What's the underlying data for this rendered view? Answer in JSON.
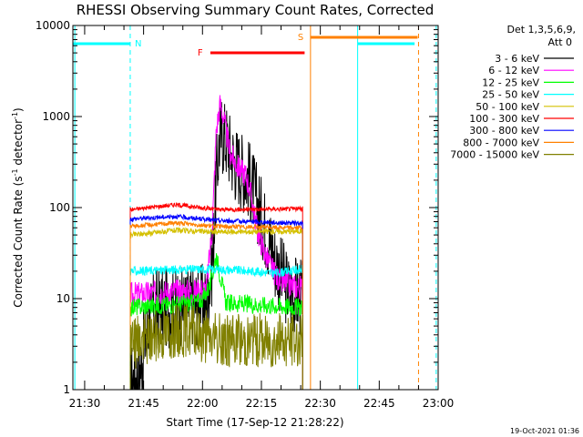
{
  "chart_data": {
    "type": "line",
    "title": "RHESSI Observing Summary Count Rates, Corrected",
    "xlabel": "Start Time (17-Sep-12 21:28:22)",
    "ylabel_main": "Corrected Count Rate (s",
    "ylabel_sup1": "-1",
    "ylabel_mid": " detector",
    "ylabel_sup2": "-1",
    "ylabel_end": ")",
    "y_scale": "log",
    "ylim": [
      1,
      10000
    ],
    "xlim_minutes": [
      -1,
      92
    ],
    "xtick_minutes": [
      2,
      17,
      32,
      47,
      62,
      77,
      92
    ],
    "xtick_labels": [
      "21:30",
      "21:45",
      "22:00",
      "22:15",
      "22:30",
      "22:45",
      "23:00"
    ],
    "ytick_values": [
      1,
      10,
      100,
      1000,
      10000
    ],
    "ytick_labels": [
      "1",
      "10",
      "100",
      "1000",
      "10000"
    ],
    "legend_header": [
      "Det 1,3,5,6,9,",
      "Att 0"
    ],
    "legend_placement": "top-right",
    "timestamp": "19-Oct-2021 01:36",
    "data_start_minute": 13.6,
    "data_end_minute": 57.5,
    "series": [
      {
        "name": "3 - 6 keV",
        "color": "#000000",
        "base": 5.5,
        "noise": 0.45,
        "points": [
          [
            13.6,
            1.2
          ],
          [
            16,
            1.5
          ],
          [
            18,
            5
          ],
          [
            20,
            8
          ],
          [
            25,
            8
          ],
          [
            30,
            8.5
          ],
          [
            33,
            9
          ],
          [
            34.5,
            25
          ],
          [
            35.5,
            200
          ],
          [
            36.5,
            660
          ],
          [
            38,
            560
          ],
          [
            40,
            330
          ],
          [
            42,
            260
          ],
          [
            44,
            200
          ],
          [
            46,
            110
          ],
          [
            48,
            60
          ],
          [
            50,
            30
          ],
          [
            52,
            18
          ],
          [
            54,
            12
          ],
          [
            57.5,
            10
          ]
        ]
      },
      {
        "name": "6 - 12 keV",
        "color": "#ff00ff",
        "base": 11,
        "noise": 0.14,
        "points": [
          [
            13.6,
            11
          ],
          [
            25,
            12
          ],
          [
            30,
            12
          ],
          [
            33,
            13
          ],
          [
            34.5,
            60
          ],
          [
            35.5,
            700
          ],
          [
            36.5,
            1400
          ],
          [
            37.5,
            900
          ],
          [
            39,
            400
          ],
          [
            41,
            280
          ],
          [
            43,
            230
          ],
          [
            44.5,
            130
          ],
          [
            46,
            55
          ],
          [
            48,
            30
          ],
          [
            50,
            20
          ],
          [
            52,
            15
          ],
          [
            57.5,
            13
          ]
        ]
      },
      {
        "name": "12 - 25 keV",
        "color": "#00ff00",
        "base": 8,
        "noise": 0.1,
        "points": [
          [
            13.6,
            8
          ],
          [
            30,
            9
          ],
          [
            32,
            10
          ],
          [
            34,
            14
          ],
          [
            35.5,
            30
          ],
          [
            36.5,
            18
          ],
          [
            38,
            9
          ],
          [
            57.5,
            8
          ]
        ]
      },
      {
        "name": "25 - 50 keV",
        "color": "#00ffff",
        "base": 20,
        "noise": 0.05,
        "points": [
          [
            13.6,
            20
          ],
          [
            30,
            21
          ],
          [
            36,
            21
          ],
          [
            45,
            20
          ],
          [
            50,
            19
          ],
          [
            57.5,
            21
          ]
        ]
      },
      {
        "name": "50 - 100 keV",
        "color": "#d4c000",
        "base": 52,
        "noise": 0.03,
        "points": [
          [
            13.6,
            50
          ],
          [
            25,
            56
          ],
          [
            36,
            54
          ],
          [
            57.5,
            55
          ]
        ]
      },
      {
        "name": "100 - 300 keV",
        "color": "#ff0000",
        "base": 95,
        "noise": 0.025,
        "points": [
          [
            13.6,
            95
          ],
          [
            25,
            108
          ],
          [
            36,
            95
          ],
          [
            57.5,
            97
          ]
        ]
      },
      {
        "name": "300 - 800 keV",
        "color": "#0000ff",
        "base": 75,
        "noise": 0.025,
        "points": [
          [
            13.6,
            75
          ],
          [
            25,
            80
          ],
          [
            36,
            72
          ],
          [
            57.5,
            67
          ]
        ]
      },
      {
        "name": "800 - 7000 keV",
        "color": "#ff8000",
        "base": 62,
        "noise": 0.025,
        "points": [
          [
            13.6,
            62
          ],
          [
            25,
            68
          ],
          [
            36,
            62
          ],
          [
            57.5,
            60
          ]
        ]
      },
      {
        "name": "7000 - 15000 keV",
        "color": "#808000",
        "base": 3.5,
        "noise": 0.3,
        "points": [
          [
            13.6,
            2.8
          ],
          [
            16,
            3.5
          ],
          [
            25,
            4.5
          ],
          [
            28,
            4.5
          ],
          [
            35,
            3.5
          ],
          [
            57.5,
            3.5
          ]
        ]
      }
    ],
    "markers": {
      "night_label": "N",
      "flare_label": "F",
      "saa_label": "S",
      "night_intervals": [
        [
          -1,
          13.6
        ],
        [
          71.5,
          86
        ]
      ],
      "night_dashed_minutes": [
        13.6,
        91.5
      ],
      "night_solid_minutes": [
        -0.5,
        71.5
      ],
      "flare_interval": [
        34,
        58
      ],
      "saa_interval": [
        59.5,
        97
      ],
      "saa_dashed_minute": 87,
      "data_gap_minutes": [
        57.5,
        59.5
      ]
    }
  }
}
